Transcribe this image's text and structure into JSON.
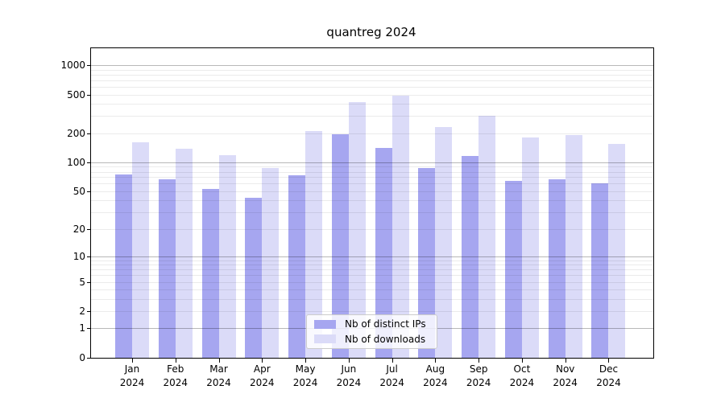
{
  "chart_data": {
    "type": "bar",
    "title": "quantreg 2024",
    "y_scale": "log10(value+1)",
    "ylim": [
      0,
      1500
    ],
    "grid": true,
    "legend_position": "bottom-center-inside",
    "categories": [
      "Jan",
      "Feb",
      "Mar",
      "Apr",
      "May",
      "Jun",
      "Jul",
      "Aug",
      "Sep",
      "Oct",
      "Nov",
      "Dec"
    ],
    "year_label": "2024",
    "y_tick_labels": [
      "0",
      "1",
      "2",
      "5",
      "10",
      "20",
      "50",
      "100",
      "200",
      "500",
      "1000"
    ],
    "y_tick_values": [
      0,
      1,
      2,
      5,
      10,
      20,
      50,
      100,
      200,
      500,
      1000
    ],
    "major_grid_values": [
      1,
      10,
      100,
      1000
    ],
    "minor_grid_values": [
      2,
      3,
      4,
      5,
      6,
      7,
      8,
      9,
      20,
      30,
      40,
      50,
      60,
      70,
      80,
      90,
      200,
      300,
      400,
      500,
      600,
      700,
      800,
      900
    ],
    "series": [
      {
        "name": "Nb of distinct IPs",
        "color": "#a6a6f0",
        "values": [
          75,
          66,
          53,
          43,
          74,
          195,
          142,
          88,
          116,
          64,
          67,
          60
        ]
      },
      {
        "name": "Nb of downloads",
        "color": "#dbdbf8",
        "values": [
          162,
          138,
          118,
          88,
          211,
          420,
          485,
          233,
          304,
          181,
          192,
          154
        ]
      }
    ],
    "colors": {
      "background": "#ffffff",
      "frame": "#000000",
      "text": "#000000",
      "major_grid": "rgba(0,0,0,0.28)",
      "minor_grid": "rgba(0,0,0,0.08)",
      "legend_border": "#cccccc"
    }
  }
}
